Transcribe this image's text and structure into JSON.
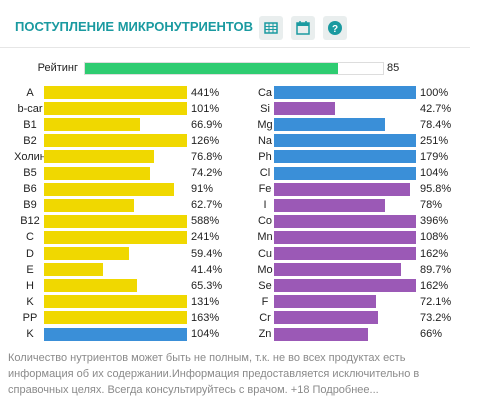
{
  "header": {
    "title": "ПОСТУПЛЕНИЕ МИКРОНУТРИЕНТОВ"
  },
  "rating": {
    "label": "Рейтинг",
    "value": 85,
    "color": "#2ecc71"
  },
  "left": [
    {
      "name": "A",
      "value": 441,
      "label": "441%",
      "color": "#f0d800"
    },
    {
      "name": "b-car",
      "value": 101,
      "label": "101%",
      "color": "#f0d800"
    },
    {
      "name": "B1",
      "value": 66.9,
      "label": "66.9%",
      "color": "#f0d800"
    },
    {
      "name": "B2",
      "value": 126,
      "label": "126%",
      "color": "#f0d800"
    },
    {
      "name": "Холин",
      "value": 76.8,
      "label": "76.8%",
      "color": "#f0d800"
    },
    {
      "name": "B5",
      "value": 74.2,
      "label": "74.2%",
      "color": "#f0d800"
    },
    {
      "name": "B6",
      "value": 91,
      "label": "91%",
      "color": "#f0d800"
    },
    {
      "name": "B9",
      "value": 62.7,
      "label": "62.7%",
      "color": "#f0d800"
    },
    {
      "name": "B12",
      "value": 588,
      "label": "588%",
      "color": "#f0d800"
    },
    {
      "name": "C",
      "value": 241,
      "label": "241%",
      "color": "#f0d800"
    },
    {
      "name": "D",
      "value": 59.4,
      "label": "59.4%",
      "color": "#f0d800"
    },
    {
      "name": "E",
      "value": 41.4,
      "label": "41.4%",
      "color": "#f0d800"
    },
    {
      "name": "H",
      "value": 65.3,
      "label": "65.3%",
      "color": "#f0d800"
    },
    {
      "name": "K",
      "value": 131,
      "label": "131%",
      "color": "#f0d800"
    },
    {
      "name": "PP",
      "value": 163,
      "label": "163%",
      "color": "#f0d800"
    },
    {
      "name": "K",
      "value": 104,
      "label": "104%",
      "color": "#3a8fd8"
    }
  ],
  "right": [
    {
      "name": "Ca",
      "value": 100,
      "label": "100%",
      "color": "#3a8fd8"
    },
    {
      "name": "Si",
      "value": 42.7,
      "label": "42.7%",
      "color": "#9b59b6"
    },
    {
      "name": "Mg",
      "value": 78.4,
      "label": "78.4%",
      "color": "#3a8fd8"
    },
    {
      "name": "Na",
      "value": 251,
      "label": "251%",
      "color": "#3a8fd8"
    },
    {
      "name": "Ph",
      "value": 179,
      "label": "179%",
      "color": "#3a8fd8"
    },
    {
      "name": "Cl",
      "value": 104,
      "label": "104%",
      "color": "#3a8fd8"
    },
    {
      "name": "Fe",
      "value": 95.8,
      "label": "95.8%",
      "color": "#9b59b6"
    },
    {
      "name": "I",
      "value": 78,
      "label": "78%",
      "color": "#9b59b6"
    },
    {
      "name": "Co",
      "value": 396,
      "label": "396%",
      "color": "#9b59b6"
    },
    {
      "name": "Mn",
      "value": 108,
      "label": "108%",
      "color": "#9b59b6"
    },
    {
      "name": "Cu",
      "value": 162,
      "label": "162%",
      "color": "#9b59b6"
    },
    {
      "name": "Mo",
      "value": 89.7,
      "label": "89.7%",
      "color": "#9b59b6"
    },
    {
      "name": "Se",
      "value": 162,
      "label": "162%",
      "color": "#9b59b6"
    },
    {
      "name": "F",
      "value": 72.1,
      "label": "72.1%",
      "color": "#9b59b6"
    },
    {
      "name": "Cr",
      "value": 73.2,
      "label": "73.2%",
      "color": "#9b59b6"
    },
    {
      "name": "Zn",
      "value": 66,
      "label": "66%",
      "color": "#9b59b6"
    }
  ],
  "footer": {
    "text": "Количество нутриентов может быть не полным, т.к. не во всех продуктах есть информация об их содержании.Информация предоставляется исключительно в справочных целях. Всегда консультируйтесь с врачом. +18 Подробнее..."
  }
}
